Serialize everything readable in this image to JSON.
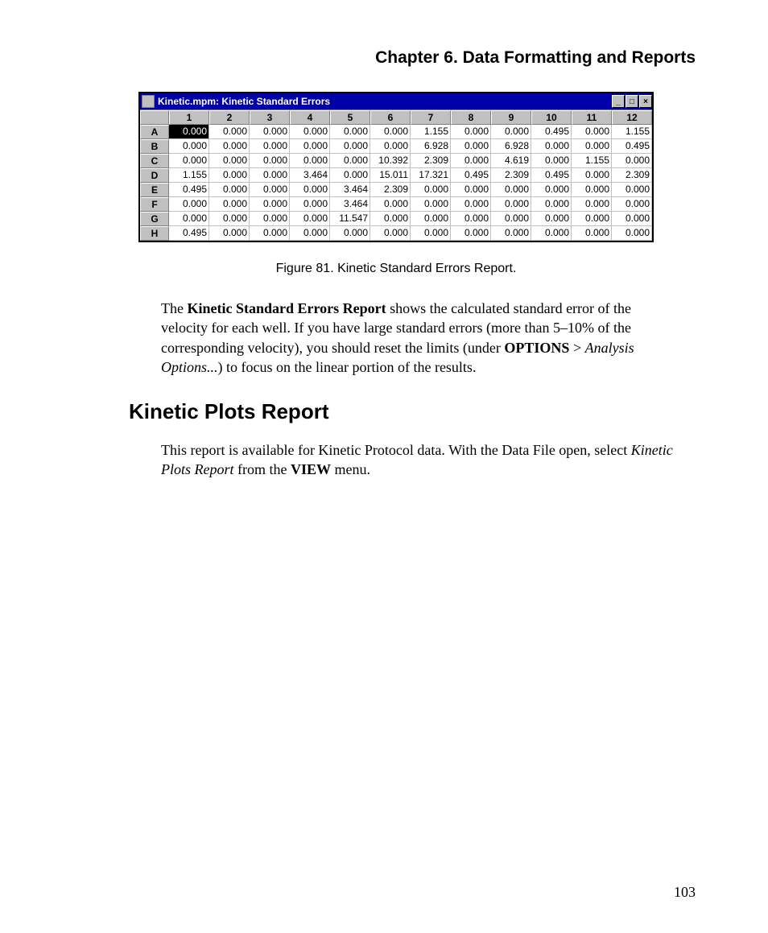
{
  "chapter_title": "Chapter 6.  Data Formatting and Reports",
  "window": {
    "title": "Kinetic.mpm: Kinetic Standard Errors",
    "titlebar_bg": "#0000a8",
    "btn_min_glyph": "_",
    "btn_max_glyph": "□",
    "btn_close_glyph": "×"
  },
  "grid": {
    "col_headers": [
      "1",
      "2",
      "3",
      "4",
      "5",
      "6",
      "7",
      "8",
      "9",
      "10",
      "11",
      "12"
    ],
    "row_headers": [
      "A",
      "B",
      "C",
      "D",
      "E",
      "F",
      "G",
      "H"
    ],
    "selected": {
      "row": 0,
      "col": 0
    },
    "cells": [
      [
        "0.000",
        "0.000",
        "0.000",
        "0.000",
        "0.000",
        "0.000",
        "1.155",
        "0.000",
        "0.000",
        "0.495",
        "0.000",
        "1.155"
      ],
      [
        "0.000",
        "0.000",
        "0.000",
        "0.000",
        "0.000",
        "0.000",
        "6.928",
        "0.000",
        "6.928",
        "0.000",
        "0.000",
        "0.495"
      ],
      [
        "0.000",
        "0.000",
        "0.000",
        "0.000",
        "0.000",
        "10.392",
        "2.309",
        "0.000",
        "4.619",
        "0.000",
        "1.155",
        "0.000"
      ],
      [
        "1.155",
        "0.000",
        "0.000",
        "3.464",
        "0.000",
        "15.011",
        "17.321",
        "0.495",
        "2.309",
        "0.495",
        "0.000",
        "2.309"
      ],
      [
        "0.495",
        "0.000",
        "0.000",
        "0.000",
        "3.464",
        "2.309",
        "0.000",
        "0.000",
        "0.000",
        "0.000",
        "0.000",
        "0.000"
      ],
      [
        "0.000",
        "0.000",
        "0.000",
        "0.000",
        "3.464",
        "0.000",
        "0.000",
        "0.000",
        "0.000",
        "0.000",
        "0.000",
        "0.000"
      ],
      [
        "0.000",
        "0.000",
        "0.000",
        "0.000",
        "11.547",
        "0.000",
        "0.000",
        "0.000",
        "0.000",
        "0.000",
        "0.000",
        "0.000"
      ],
      [
        "0.495",
        "0.000",
        "0.000",
        "0.000",
        "0.000",
        "0.000",
        "0.000",
        "0.000",
        "0.000",
        "0.000",
        "0.000",
        "0.000"
      ]
    ]
  },
  "figure_caption": "Figure 81.  Kinetic Standard Errors Report.",
  "para1": {
    "t1": "The ",
    "b1": "Kinetic Standard Errors Report",
    "t2": " shows the calculated standard error of the velocity for each well. If you have large standard errors (more than 5–10% of the corresponding velocity), you should reset the limits (under ",
    "b2": "OPTIONS",
    "t3": " > ",
    "i1": "Analysis Options...",
    "t4": ") to focus on the linear portion of the results."
  },
  "section_heading": "Kinetic Plots Report",
  "para2": {
    "t1": "This report is available for Kinetic Protocol data. With the Data File open, select ",
    "i1": "Kinetic Plots Report",
    "t2": " from the ",
    "b1": "VIEW",
    "t3": " menu."
  },
  "page_number": "103"
}
